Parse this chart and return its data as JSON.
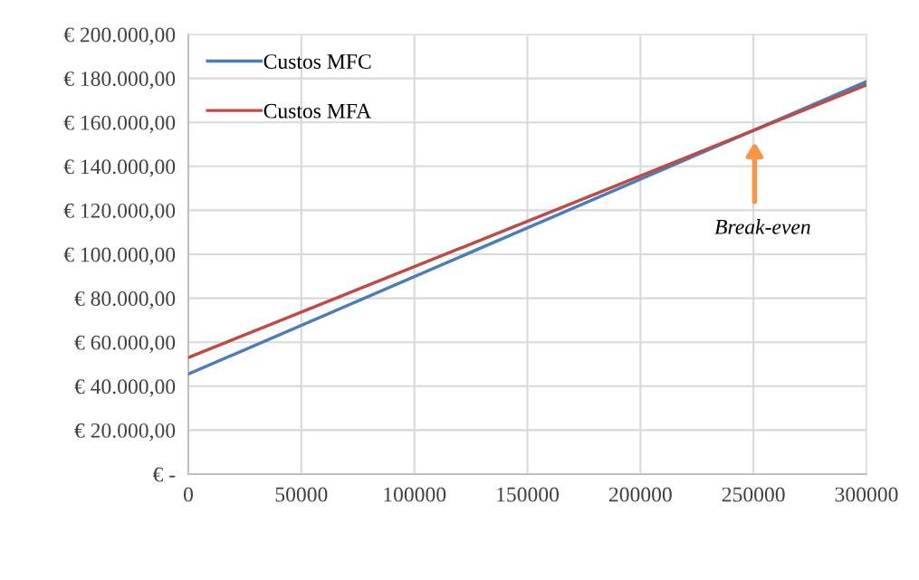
{
  "chart_data": {
    "type": "line",
    "x": [
      0,
      300000
    ],
    "series": [
      {
        "name": "Custos MFC",
        "color": "#4a7ebb",
        "values": [
          45500,
          178500
        ]
      },
      {
        "name": "Custos MFA",
        "color": "#be4b48",
        "values": [
          53000,
          177000
        ]
      }
    ],
    "xlim": [
      0,
      300000
    ],
    "xticks": [
      0,
      50000,
      100000,
      150000,
      200000,
      250000,
      300000
    ],
    "ylim": [
      0,
      200000
    ],
    "yticks": [
      {
        "value": 0,
        "label": "€ -"
      },
      {
        "value": 20000,
        "label": "€ 20.000,00"
      },
      {
        "value": 40000,
        "label": "€ 40.000,00"
      },
      {
        "value": 60000,
        "label": "€ 60.000,00"
      },
      {
        "value": 80000,
        "label": "€ 80.000,00"
      },
      {
        "value": 100000,
        "label": "€ 100.000,00"
      },
      {
        "value": 120000,
        "label": "€ 120.000,00"
      },
      {
        "value": 140000,
        "label": "€ 140.000,00"
      },
      {
        "value": 160000,
        "label": "€ 160.000,00"
      },
      {
        "value": 180000,
        "label": "€ 180.000,00"
      },
      {
        "value": 200000,
        "label": "€ 200.000,00"
      }
    ],
    "annotations": [
      "Break-even"
    ],
    "grid": true,
    "legend": "top left",
    "marker": "none",
    "line_style": "solid"
  }
}
